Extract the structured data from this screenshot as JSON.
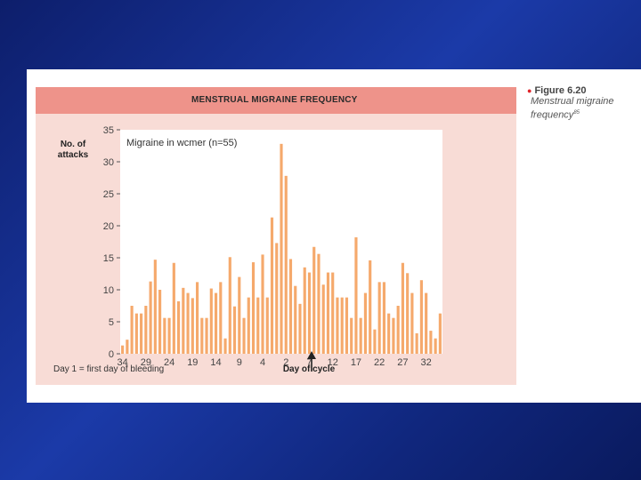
{
  "figure": {
    "number": "Figure 6.20",
    "caption": "Menstrual migraine frequency",
    "ref": "85"
  },
  "colors": {
    "bar": "#f5a96c",
    "plot_bg": "#ffffff",
    "frame_bg": "#f8dcd6",
    "title_band": "#ee938a"
  },
  "chart_data": {
    "type": "bar",
    "title": "MENSTRUAL MIGRAINE FREQUENCY",
    "inset_label": "Migraine in wcmer (n=55)",
    "ylabel": "No. of attacks",
    "xlabel": "Day of cycle",
    "footnote": "Day 1 = first day of bleeding",
    "ylim": [
      0,
      35
    ],
    "yticks": [
      0,
      5,
      10,
      15,
      20,
      25,
      30,
      35
    ],
    "xtick_labels": [
      "34",
      "29",
      "24",
      "19",
      "14",
      "9",
      "4",
      "2",
      "7",
      "12",
      "17",
      "22",
      "27",
      "32"
    ],
    "day1_arrow": true,
    "grid": false,
    "values": [
      1.3,
      2.2,
      7.5,
      6.3,
      6.3,
      7.5,
      11.3,
      14.7,
      10,
      5.6,
      5.6,
      14.2,
      8.2,
      10.3,
      9.5,
      8.7,
      11.2,
      5.6,
      5.6,
      10.2,
      9.5,
      11.2,
      2.4,
      15.1,
      7.4,
      12,
      5.6,
      8.8,
      14.3,
      8.8,
      15.5,
      8.8,
      21.3,
      17.3,
      32.8,
      27.8,
      14.8,
      10.6,
      7.8,
      13.5,
      12.7,
      16.7,
      15.6,
      10.8,
      12.7,
      12.7,
      8.8,
      8.8,
      8.8,
      5.6,
      18.2,
      5.6,
      9.5,
      14.6,
      3.8,
      11.2,
      11.2,
      6.3,
      5.6,
      7.5,
      14.2,
      12.6,
      9.5,
      3.2,
      11.5,
      9.5,
      3.6,
      2.4,
      6.3
    ]
  }
}
